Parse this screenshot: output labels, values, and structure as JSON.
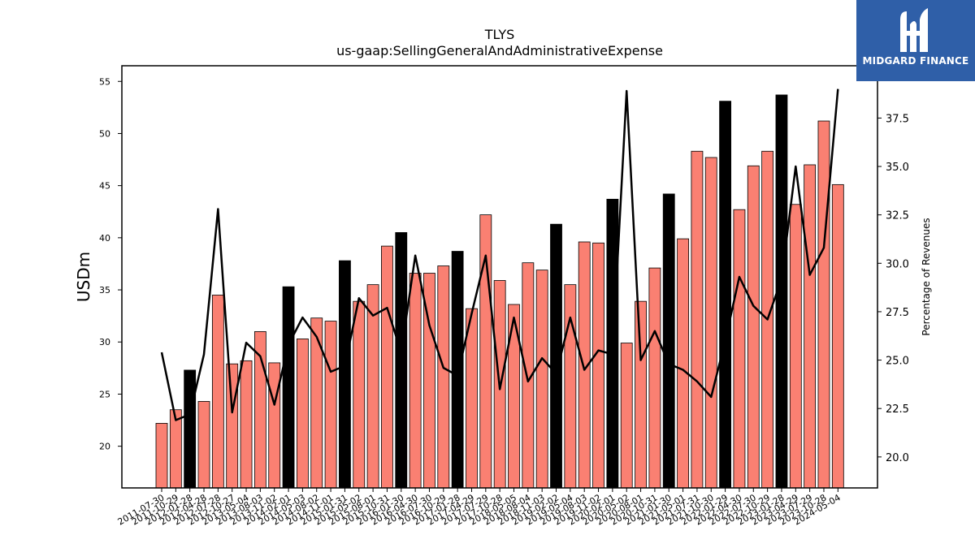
{
  "chart_data": {
    "type": "bar",
    "title": "TLYS",
    "subtitle": "us-gaap:SellingGeneralAndAdministrativeExpense",
    "ylabel": "USDm",
    "y2label": "Percentage of Revenues",
    "ylim": [
      16,
      56.5
    ],
    "y2lim": [
      18.4,
      40.2
    ],
    "yticks": [
      20,
      25,
      30,
      35,
      40,
      45,
      50,
      55
    ],
    "y2ticks": [
      20.0,
      22.5,
      25.0,
      27.5,
      30.0,
      32.5,
      35.0,
      37.5
    ],
    "grid": false,
    "colors": {
      "bar": "#fa8072",
      "bar_highlight": "#000000",
      "line": "#000000"
    },
    "categories": [
      "2011-07-30",
      "2011-10-29",
      "2012-01-28",
      "2012-04-28",
      "2012-07-28",
      "2012-10-27",
      "2013-05-04",
      "2013-08-03",
      "2013-11-02",
      "2014-02-01",
      "2014-05-03",
      "2014-08-02",
      "2014-11-01",
      "2015-01-31",
      "2015-05-02",
      "2015-08-01",
      "2015-10-31",
      "2016-01-30",
      "2016-04-30",
      "2016-07-30",
      "2016-10-29",
      "2017-01-28",
      "2017-04-29",
      "2017-07-29",
      "2017-10-28",
      "2018-05-05",
      "2018-08-04",
      "2018-11-03",
      "2019-02-02",
      "2019-05-04",
      "2019-08-03",
      "2019-11-02",
      "2020-02-01",
      "2020-05-02",
      "2020-08-01",
      "2020-10-31",
      "2021-01-30",
      "2021-05-01",
      "2021-07-31",
      "2021-10-30",
      "2022-01-29",
      "2022-04-30",
      "2022-07-30",
      "2022-10-29",
      "2023-01-28",
      "2023-04-29",
      "2023-07-29",
      "2023-10-28",
      "2024-05-04"
    ],
    "bars": [
      22.2,
      23.5,
      27.3,
      24.3,
      34.5,
      27.9,
      28.2,
      31.0,
      28.0,
      35.3,
      30.3,
      32.3,
      32.0,
      37.8,
      33.9,
      35.5,
      39.2,
      40.5,
      36.6,
      36.6,
      37.3,
      38.7,
      33.2,
      42.2,
      35.9,
      33.6,
      37.6,
      36.9,
      41.3,
      35.5,
      39.6,
      39.5,
      43.7,
      29.9,
      33.9,
      37.1,
      44.2,
      39.9,
      48.3,
      47.7,
      53.1,
      42.7,
      46.9,
      48.3,
      53.7,
      43.2,
      47.0,
      51.2,
      45.1
    ],
    "bar_highlight": [
      false,
      false,
      true,
      false,
      false,
      false,
      false,
      false,
      false,
      true,
      false,
      false,
      false,
      true,
      false,
      false,
      false,
      true,
      false,
      false,
      false,
      true,
      false,
      false,
      false,
      false,
      false,
      false,
      true,
      false,
      false,
      false,
      true,
      false,
      false,
      false,
      true,
      false,
      false,
      false,
      true,
      false,
      false,
      false,
      true,
      false,
      false,
      false,
      false
    ],
    "pct_of_revenue": [
      25.4,
      21.9,
      22.2,
      25.3,
      32.8,
      22.3,
      25.9,
      25.2,
      22.7,
      25.8,
      27.2,
      26.2,
      24.4,
      24.7,
      28.2,
      27.3,
      27.7,
      25.4,
      30.4,
      26.8,
      24.6,
      24.2,
      27.4,
      30.4,
      23.5,
      27.2,
      23.9,
      25.1,
      24.3,
      27.2,
      24.5,
      25.5,
      25.3,
      38.9,
      25.0,
      26.5,
      24.8,
      24.5,
      23.9,
      23.1,
      26.0,
      29.3,
      27.8,
      27.1,
      29.2,
      35.0,
      29.4,
      30.8,
      39.0
    ]
  },
  "logo": {
    "text": "MIDGARD FINANCE"
  }
}
